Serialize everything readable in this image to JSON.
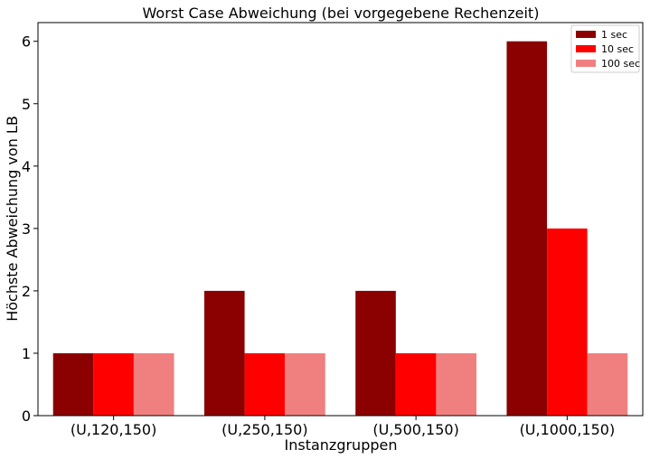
{
  "chart_data": {
    "type": "bar",
    "title": "Worst Case Abweichung (bei vorgegebene Rechenzeit)",
    "xlabel": "Instanzgruppen",
    "ylabel": "Höchste Abweichung von LB",
    "categories": [
      "(U,120,150)",
      "(U,250,150)",
      "(U,500,150)",
      "(U,1000,150)"
    ],
    "series": [
      {
        "name": "1 sec",
        "color": "#8b0000",
        "values": [
          1,
          2,
          2,
          6
        ]
      },
      {
        "name": "10 sec",
        "color": "#ff0000",
        "values": [
          1,
          1,
          1,
          3
        ]
      },
      {
        "name": "100 sec",
        "color": "#f08080",
        "values": [
          1,
          1,
          1,
          1
        ]
      }
    ],
    "ylim": [
      0,
      6.3
    ],
    "yticks": [
      "0",
      "1",
      "2",
      "3",
      "4",
      "5",
      "6"
    ],
    "grid": false,
    "legend": "top-right"
  }
}
